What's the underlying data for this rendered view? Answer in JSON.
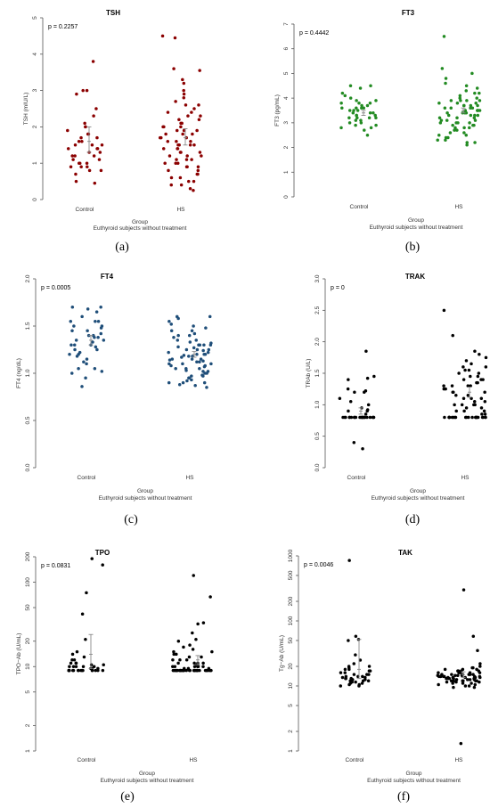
{
  "chart_data": [
    {
      "type": "scatter",
      "panel_letter": "(a)",
      "title": "TSH",
      "p_value": "p = 0.2257",
      "ylabel": "TSH (mIU/L)",
      "xlabel": "Group",
      "xsublabel": "Euthyroid subjects without treatment",
      "categories": [
        "Control",
        "HS"
      ],
      "yscale": "linear",
      "ylim": [
        0,
        5
      ],
      "yticks": [
        0,
        1,
        2,
        3,
        4,
        5
      ],
      "ytick_labels": [
        "0",
        "1",
        "2",
        "3",
        "4",
        "5"
      ],
      "color": "#8B0000",
      "groups": [
        {
          "name": "Control",
          "mean": 1.6,
          "err": [
            1.3,
            2.0
          ],
          "values": [
            3.8,
            3.0,
            3.0,
            2.9,
            2.5,
            2.3,
            2.1,
            2.0,
            2.0,
            1.9,
            1.8,
            1.8,
            1.7,
            1.7,
            1.6,
            1.6,
            1.5,
            1.5,
            1.5,
            1.4,
            1.4,
            1.4,
            1.3,
            1.3,
            1.2,
            1.2,
            1.2,
            1.1,
            1.1,
            1.0,
            1.0,
            1.0,
            0.9,
            0.9,
            0.9,
            0.8,
            0.8,
            0.7,
            0.5,
            0.45
          ]
        },
        {
          "name": "HS",
          "mean": 1.7,
          "err": [
            1.5,
            1.95
          ],
          "values": [
            4.5,
            4.45,
            3.6,
            3.55,
            3.3,
            3.2,
            3.0,
            2.9,
            2.8,
            2.7,
            2.6,
            2.5,
            2.4,
            2.4,
            2.3,
            2.3,
            2.2,
            2.2,
            2.1,
            2.1,
            2.0,
            2.0,
            2.0,
            1.9,
            1.9,
            1.9,
            1.8,
            1.8,
            1.8,
            1.7,
            1.7,
            1.7,
            1.6,
            1.6,
            1.6,
            1.5,
            1.5,
            1.5,
            1.5,
            1.4,
            1.4,
            1.4,
            1.3,
            1.3,
            1.3,
            1.2,
            1.2,
            1.2,
            1.1,
            1.1,
            1.1,
            1.0,
            1.0,
            1.0,
            0.9,
            0.9,
            0.9,
            0.8,
            0.8,
            0.7,
            0.7,
            0.6,
            0.6,
            0.5,
            0.5,
            0.4,
            0.4,
            0.3,
            0.25,
            2.6
          ]
        }
      ]
    },
    {
      "type": "scatter",
      "panel_letter": "(b)",
      "title": "FT3",
      "p_value": "p = 0.4442",
      "ylabel": "FT3 (pg/mL)",
      "xlabel": "Group",
      "xsublabel": "Euthyroid subjects without treatment",
      "categories": [
        "Control",
        "HS"
      ],
      "yscale": "linear",
      "ylim": [
        0,
        7
      ],
      "yticks": [
        0,
        1,
        2,
        3,
        4,
        5,
        6,
        7
      ],
      "ytick_labels": [
        "0",
        "1",
        "2",
        "3",
        "4",
        "5",
        "6",
        "7"
      ],
      "color": "#228B22",
      "groups": [
        {
          "name": "Control",
          "mean": 3.4,
          "err": [
            3.3,
            3.5
          ],
          "values": [
            4.5,
            4.4,
            4.2,
            4.1,
            4.0,
            3.9,
            3.9,
            3.8,
            3.8,
            3.7,
            3.7,
            3.6,
            3.6,
            3.6,
            3.5,
            3.5,
            3.5,
            3.4,
            3.4,
            3.4,
            3.3,
            3.3,
            3.3,
            3.2,
            3.2,
            3.2,
            3.1,
            3.1,
            3.0,
            3.0,
            2.9,
            2.9,
            2.8,
            2.8,
            2.7,
            2.5,
            4.5,
            3.6,
            3.2,
            3.8
          ]
        },
        {
          "name": "HS",
          "mean": 3.5,
          "err": [
            3.4,
            3.6
          ],
          "values": [
            6.5,
            5.2,
            5.0,
            4.8,
            4.6,
            4.5,
            4.4,
            4.3,
            4.2,
            4.2,
            4.1,
            4.0,
            4.0,
            3.9,
            3.9,
            3.9,
            3.8,
            3.8,
            3.8,
            3.7,
            3.7,
            3.7,
            3.7,
            3.6,
            3.6,
            3.6,
            3.6,
            3.5,
            3.5,
            3.5,
            3.5,
            3.4,
            3.4,
            3.4,
            3.4,
            3.3,
            3.3,
            3.3,
            3.3,
            3.2,
            3.2,
            3.2,
            3.1,
            3.1,
            3.1,
            3.0,
            3.0,
            3.0,
            2.9,
            2.9,
            2.9,
            2.8,
            2.8,
            2.7,
            2.7,
            2.6,
            2.6,
            2.5,
            2.5,
            2.4,
            2.4,
            2.3,
            2.3,
            2.2,
            2.2,
            2.1,
            3.9,
            3.5,
            3.0,
            2.8
          ]
        }
      ]
    },
    {
      "type": "scatter",
      "panel_letter": "(c)",
      "title": "FT4",
      "p_value": "p = 0.0005",
      "ylabel": "FT4 (ng/dL)",
      "xlabel": "Group",
      "xsublabel": "Euthyroid subjects without treatment",
      "categories": [
        "Control",
        "HS"
      ],
      "yscale": "linear",
      "ylim": [
        0,
        2.0
      ],
      "yticks": [
        0,
        0.5,
        1.0,
        1.5,
        2.0
      ],
      "ytick_labels": [
        "0.0",
        "0.5",
        "1.0",
        "1.5",
        "2.0"
      ],
      "color": "#1F4E79",
      "groups": [
        {
          "name": "Control",
          "mean": 1.35,
          "err": [
            1.3,
            1.4
          ],
          "values": [
            1.7,
            1.7,
            1.68,
            1.65,
            1.6,
            1.55,
            1.55,
            1.55,
            1.5,
            1.5,
            1.48,
            1.45,
            1.45,
            1.42,
            1.4,
            1.4,
            1.38,
            1.38,
            1.35,
            1.35,
            1.33,
            1.3,
            1.3,
            1.3,
            1.28,
            1.25,
            1.25,
            1.22,
            1.2,
            1.2,
            1.18,
            1.15,
            1.12,
            1.1,
            1.05,
            1.05,
            1.02,
            1.0,
            0.95,
            0.86
          ]
        },
        {
          "name": "HS",
          "mean": 1.2,
          "err": [
            1.17,
            1.23
          ],
          "values": [
            1.6,
            1.6,
            1.58,
            1.55,
            1.52,
            1.5,
            1.48,
            1.45,
            1.45,
            1.42,
            1.4,
            1.4,
            1.38,
            1.35,
            1.35,
            1.33,
            1.32,
            1.3,
            1.3,
            1.3,
            1.28,
            1.27,
            1.25,
            1.25,
            1.24,
            1.22,
            1.22,
            1.2,
            1.2,
            1.2,
            1.19,
            1.18,
            1.17,
            1.15,
            1.15,
            1.15,
            1.14,
            1.12,
            1.12,
            1.1,
            1.1,
            1.1,
            1.08,
            1.07,
            1.05,
            1.05,
            1.05,
            1.03,
            1.02,
            1.0,
            1.0,
            0.98,
            0.97,
            0.95,
            0.95,
            0.93,
            0.92,
            0.9,
            0.9,
            0.88,
            0.87,
            0.85,
            1.3,
            1.25,
            1.18,
            1.13,
            1.08,
            1.02,
            0.97,
            0.9
          ]
        }
      ]
    },
    {
      "type": "scatter",
      "panel_letter": "(d)",
      "title": "TRAK",
      "p_value": "p = 0",
      "ylabel": "TRAb (U/L)",
      "xlabel": "Group",
      "xsublabel": "Euthyroid subjects without treatment",
      "categories": [
        "Control",
        "HS"
      ],
      "yscale": "linear",
      "ylim": [
        0,
        3.0
      ],
      "yticks": [
        0,
        0.5,
        1.0,
        1.5,
        2.0,
        2.5,
        3.0
      ],
      "ytick_labels": [
        "0.0",
        "0.5",
        "1.0",
        "1.5",
        "2.0",
        "2.5",
        "3.0"
      ],
      "color": "#000000",
      "groups": [
        {
          "name": "Control",
          "mean": 0.9,
          "err": [
            0.85,
            0.95
          ],
          "values": [
            1.85,
            1.45,
            1.42,
            1.4,
            1.25,
            1.22,
            1.2,
            1.2,
            1.1,
            1.05,
            1.0,
            0.95,
            0.92,
            0.9,
            0.9,
            0.85,
            0.8,
            0.8,
            0.8,
            0.8,
            0.8,
            0.8,
            0.8,
            0.8,
            0.8,
            0.8,
            0.8,
            0.8,
            0.8,
            0.8,
            0.8,
            0.8,
            0.8,
            0.8,
            0.8,
            0.8,
            0.8,
            0.8,
            0.4,
            0.3
          ]
        },
        {
          "name": "HS",
          "mean": 1.2,
          "err": [
            1.12,
            1.28
          ],
          "values": [
            2.5,
            2.1,
            1.85,
            1.8,
            1.75,
            1.7,
            1.65,
            1.6,
            1.55,
            1.55,
            1.5,
            1.5,
            1.45,
            1.45,
            1.4,
            1.4,
            1.35,
            1.35,
            1.3,
            1.3,
            1.3,
            1.25,
            1.25,
            1.2,
            1.2,
            1.2,
            1.15,
            1.15,
            1.1,
            1.1,
            1.1,
            1.05,
            1.05,
            1.0,
            1.0,
            1.0,
            0.95,
            0.95,
            0.9,
            0.9,
            0.9,
            0.85,
            0.85,
            0.8,
            0.8,
            0.8,
            0.8,
            0.8,
            0.8,
            0.8,
            0.8,
            0.8,
            0.8,
            0.8,
            0.8,
            0.8,
            0.8,
            0.8,
            0.8,
            0.8,
            0.8,
            0.8,
            0.8,
            0.8,
            0.8,
            0.8,
            1.6,
            1.4,
            1.3,
            1.0
          ]
        }
      ]
    },
    {
      "type": "scatter",
      "panel_letter": "(e)",
      "title": "TPO",
      "p_value": "p = 0.0831",
      "ylabel": "TPO−Ab (U/mL)",
      "xlabel": "Group",
      "xsublabel": "Euthyroid subjects without treatment",
      "categories": [
        "Control",
        "HS"
      ],
      "yscale": "log",
      "ylim": [
        1,
        200
      ],
      "yticks": [
        1,
        2,
        5,
        10,
        20,
        50,
        100,
        200
      ],
      "ytick_labels": [
        "1",
        "2",
        "5",
        "10",
        "20",
        "50",
        "100",
        "200"
      ],
      "color": "#000000",
      "groups": [
        {
          "name": "Control",
          "mean": 14,
          "err": [
            9.5,
            24
          ],
          "values": [
            190,
            160,
            75,
            42,
            21,
            15,
            14,
            13,
            12,
            12,
            11,
            11,
            11,
            10.5,
            10.5,
            10,
            10,
            10,
            10,
            10,
            9.5,
            9.5,
            9.5,
            9,
            9,
            9,
            9,
            9,
            9,
            9,
            9,
            9,
            9,
            9,
            9,
            9,
            9,
            9,
            9,
            9
          ]
        },
        {
          "name": "HS",
          "mean": 12,
          "err": [
            10.5,
            13.5
          ],
          "values": [
            120,
            67,
            33,
            32,
            25,
            21,
            20,
            18,
            17,
            16,
            15,
            15,
            14,
            14,
            13,
            13,
            12,
            12,
            12,
            11,
            11,
            11,
            11,
            10.5,
            10.5,
            10,
            10,
            10,
            10,
            10,
            10,
            9.5,
            9.5,
            9.5,
            9,
            9,
            9,
            9,
            9,
            9,
            9,
            9,
            9,
            9,
            9,
            9,
            9,
            9,
            9,
            9,
            9,
            9,
            9,
            9,
            9,
            9,
            9,
            9,
            9,
            9,
            9,
            9,
            9,
            9,
            9,
            9,
            9,
            9,
            9,
            9
          ]
        }
      ]
    },
    {
      "type": "scatter",
      "panel_letter": "(f)",
      "title": "TAK",
      "p_value": "p = 0.0046",
      "ylabel": "Tg−Ab (U/mL)",
      "xlabel": "Group",
      "xsublabel": "Euthyroid subjects without treatment",
      "categories": [
        "Control",
        "HS"
      ],
      "yscale": "log",
      "ylim": [
        1,
        1000
      ],
      "yticks": [
        1,
        2,
        5,
        10,
        20,
        50,
        100,
        200,
        500,
        1000
      ],
      "ytick_labels": [
        "1",
        "2",
        "5",
        "10",
        "20",
        "50",
        "100",
        "200",
        "500",
        "1000"
      ],
      "color": "#000000",
      "groups": [
        {
          "name": "Control",
          "mean": 18,
          "err": [
            13,
            52
          ],
          "values": [
            850,
            58,
            52,
            50,
            30,
            25,
            22,
            20,
            20,
            19,
            18,
            18,
            17,
            17,
            16,
            16,
            15,
            15,
            15,
            14,
            14,
            14,
            13.5,
            13.5,
            13,
            13,
            13,
            12.5,
            12.5,
            12,
            12,
            12,
            11.5,
            11.5,
            11,
            11,
            10.5,
            10.5,
            10,
            10
          ]
        },
        {
          "name": "HS",
          "mean": 15,
          "err": [
            13.5,
            16.5
          ],
          "values": [
            300,
            58,
            35,
            22,
            20,
            19,
            19,
            18,
            18,
            18,
            17,
            17,
            17,
            17,
            16,
            16,
            16,
            16,
            16,
            15,
            15,
            15,
            15,
            15,
            15,
            14.5,
            14.5,
            14.5,
            14.5,
            14,
            14,
            14,
            14,
            14,
            14,
            14,
            13.5,
            13.5,
            13.5,
            13.5,
            13.5,
            13,
            13,
            13,
            13,
            13,
            13,
            12.5,
            12.5,
            12.5,
            12.5,
            12,
            12,
            12,
            12,
            12,
            12,
            11.5,
            11.5,
            11.5,
            11,
            11,
            11,
            10.5,
            10.5,
            10,
            10,
            9.5,
            9.5,
            1.3
          ]
        }
      ]
    }
  ]
}
